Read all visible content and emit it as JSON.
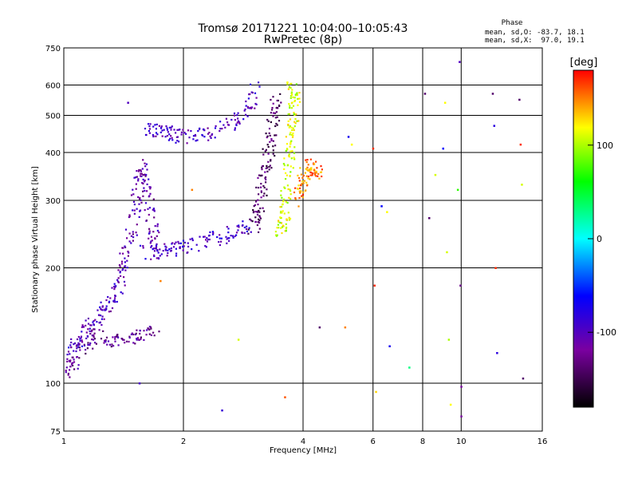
{
  "header": {
    "title": "Tromsø 20171221 10:04:00–10:05:43",
    "subtitle": "RwPretec (8p)"
  },
  "phase_stats": {
    "heading": "Phase",
    "o_line": "mean, sd,O: -83.7, 18.1",
    "x_line": "mean, sd,X:  97.0, 19.1"
  },
  "chart_data": {
    "type": "scatter",
    "title": "Tromsø 20171221 10:04:00–10:05:43",
    "subtitle": "RwPretec (8p)",
    "xlabel": "Frequency [MHz]",
    "ylabel": "Stationary phase Virtual Height [km]",
    "x_scale": "log",
    "y_scale": "log",
    "xlim": [
      1,
      16
    ],
    "ylim": [
      75,
      750
    ],
    "x_ticks": [
      1,
      2,
      4,
      6,
      8,
      10,
      16
    ],
    "y_ticks": [
      75,
      100,
      200,
      300,
      400,
      500,
      600,
      750
    ],
    "grid": true,
    "colorbar": {
      "label": "[deg]",
      "range": [
        -180,
        180
      ],
      "ticks": [
        100,
        0,
        -100
      ],
      "colormap": [
        "#000000",
        "#7a00a0",
        "#0000ff",
        "#00ffff",
        "#00ff00",
        "#ffff00",
        "#ff0000"
      ]
    },
    "traces": [
      {
        "name": "",
        "phase": -100,
        "points": [
          [
            1.0,
            112
          ],
          [
            1.05,
            122
          ],
          [
            1.1,
            130
          ],
          [
            1.15,
            138
          ],
          [
            1.2,
            146
          ],
          [
            1.25,
            152
          ],
          [
            1.3,
            160
          ],
          [
            1.35,
            170
          ],
          [
            1.38,
            185
          ],
          [
            1.42,
            200
          ]
        ]
      },
      {
        "name": "",
        "phase": -120,
        "points": [
          [
            1.0,
            104
          ],
          [
            1.04,
            110
          ],
          [
            1.1,
            120
          ],
          [
            1.15,
            128
          ],
          [
            1.2,
            134
          ],
          [
            1.3,
            130
          ],
          [
            1.4,
            128
          ],
          [
            1.5,
            132
          ],
          [
            1.6,
            135
          ],
          [
            1.7,
            136
          ]
        ]
      },
      {
        "name": "",
        "phase": -110,
        "points": [
          [
            1.4,
            200
          ],
          [
            1.45,
            230
          ],
          [
            1.5,
            260
          ],
          [
            1.52,
            300
          ],
          [
            1.55,
            340
          ],
          [
            1.58,
            370
          ],
          [
            1.62,
            330
          ],
          [
            1.65,
            290
          ],
          [
            1.68,
            250
          ],
          [
            1.7,
            230
          ]
        ]
      },
      {
        "name": "",
        "phase": -95,
        "points": [
          [
            1.6,
            220
          ],
          [
            1.7,
            218
          ],
          [
            1.8,
            222
          ],
          [
            1.9,
            225
          ],
          [
            2.0,
            228
          ],
          [
            2.2,
            232
          ],
          [
            2.4,
            238
          ],
          [
            2.6,
            245
          ],
          [
            2.8,
            250
          ],
          [
            2.95,
            258
          ]
        ]
      },
      {
        "name": "",
        "phase": -100,
        "points": [
          [
            1.62,
            460
          ],
          [
            1.7,
            458
          ],
          [
            1.8,
            452
          ],
          [
            1.9,
            445
          ],
          [
            2.0,
            440
          ],
          [
            2.2,
            442
          ],
          [
            2.4,
            450
          ],
          [
            2.6,
            470
          ],
          [
            2.8,
            495
          ],
          [
            2.95,
            540
          ],
          [
            3.05,
            600
          ]
        ]
      },
      {
        "name": "",
        "phase": -140,
        "points": [
          [
            3.0,
            255
          ],
          [
            3.05,
            270
          ],
          [
            3.1,
            290
          ],
          [
            3.15,
            320
          ],
          [
            3.2,
            350
          ],
          [
            3.25,
            380
          ],
          [
            3.3,
            420
          ],
          [
            3.35,
            470
          ],
          [
            3.4,
            520
          ],
          [
            3.45,
            560
          ]
        ]
      },
      {
        "name": "",
        "phase": 110,
        "points": [
          [
            3.5,
            250
          ],
          [
            3.55,
            255
          ],
          [
            3.6,
            270
          ],
          [
            3.62,
            300
          ],
          [
            3.65,
            340
          ],
          [
            3.7,
            380
          ],
          [
            3.72,
            420
          ],
          [
            3.75,
            460
          ],
          [
            3.78,
            500
          ],
          [
            3.8,
            540
          ],
          [
            3.82,
            570
          ],
          [
            3.7,
            600
          ]
        ]
      },
      {
        "name": "",
        "phase": 150,
        "points": [
          [
            3.9,
            300
          ],
          [
            3.95,
            320
          ],
          [
            4.0,
            340
          ],
          [
            4.1,
            360
          ],
          [
            4.2,
            370
          ],
          [
            4.3,
            360
          ],
          [
            4.4,
            350
          ]
        ]
      }
    ],
    "sparse_points": [
      {
        "x": 1.45,
        "y": 540,
        "phase": -100
      },
      {
        "x": 1.55,
        "y": 100,
        "phase": -95
      },
      {
        "x": 1.75,
        "y": 185,
        "phase": 150
      },
      {
        "x": 2.1,
        "y": 320,
        "phase": 150
      },
      {
        "x": 2.5,
        "y": 85,
        "phase": -85
      },
      {
        "x": 2.75,
        "y": 130,
        "phase": 110
      },
      {
        "x": 3.6,
        "y": 92,
        "phase": 160
      },
      {
        "x": 3.65,
        "y": 610,
        "phase": 120
      },
      {
        "x": 4.4,
        "y": 140,
        "phase": -140
      },
      {
        "x": 5.1,
        "y": 140,
        "phase": 150
      },
      {
        "x": 5.2,
        "y": 440,
        "phase": -70
      },
      {
        "x": 5.3,
        "y": 420,
        "phase": 120
      },
      {
        "x": 6.0,
        "y": 410,
        "phase": 170
      },
      {
        "x": 6.05,
        "y": 180,
        "phase": 170
      },
      {
        "x": 6.1,
        "y": 95,
        "phase": 130
      },
      {
        "x": 6.3,
        "y": 290,
        "phase": -60
      },
      {
        "x": 6.5,
        "y": 280,
        "phase": 120
      },
      {
        "x": 6.6,
        "y": 125,
        "phase": -70
      },
      {
        "x": 7.4,
        "y": 110,
        "phase": 30
      },
      {
        "x": 8.1,
        "y": 570,
        "phase": -140
      },
      {
        "x": 8.3,
        "y": 270,
        "phase": -140
      },
      {
        "x": 8.6,
        "y": 350,
        "phase": 110
      },
      {
        "x": 9.0,
        "y": 410,
        "phase": -60
      },
      {
        "x": 9.1,
        "y": 540,
        "phase": 120
      },
      {
        "x": 9.2,
        "y": 220,
        "phase": 110
      },
      {
        "x": 9.3,
        "y": 130,
        "phase": 100
      },
      {
        "x": 9.4,
        "y": 88,
        "phase": 120
      },
      {
        "x": 9.8,
        "y": 320,
        "phase": 70
      },
      {
        "x": 9.9,
        "y": 690,
        "phase": -100
      },
      {
        "x": 9.95,
        "y": 180,
        "phase": -130
      },
      {
        "x": 10.0,
        "y": 98,
        "phase": -120
      },
      {
        "x": 10.0,
        "y": 82,
        "phase": -120
      },
      {
        "x": 12.0,
        "y": 570,
        "phase": -140
      },
      {
        "x": 12.1,
        "y": 470,
        "phase": -80
      },
      {
        "x": 12.2,
        "y": 200,
        "phase": 170
      },
      {
        "x": 12.3,
        "y": 120,
        "phase": -80
      },
      {
        "x": 14.0,
        "y": 550,
        "phase": -140
      },
      {
        "x": 14.1,
        "y": 420,
        "phase": 170
      },
      {
        "x": 14.2,
        "y": 330,
        "phase": 110
      },
      {
        "x": 14.3,
        "y": 103,
        "phase": -140
      }
    ]
  }
}
